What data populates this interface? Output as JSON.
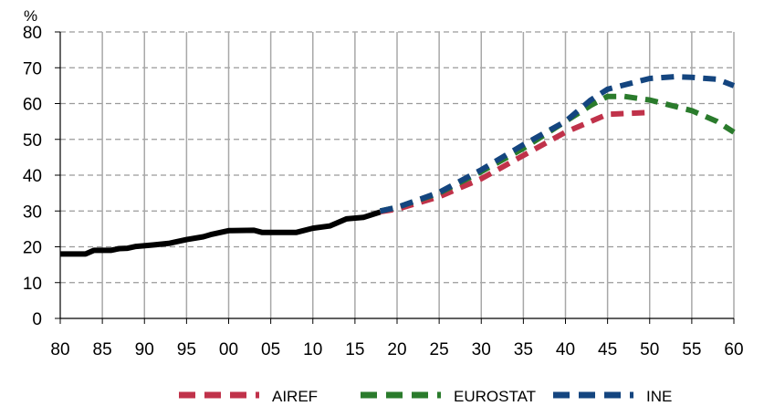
{
  "chart_data": {
    "type": "line",
    "unit_label": "%",
    "x_tick_labels": [
      "80",
      "85",
      "90",
      "95",
      "00",
      "05",
      "10",
      "15",
      "20",
      "25",
      "30",
      "35",
      "40",
      "45",
      "50",
      "55",
      "60"
    ],
    "xlim": [
      1980,
      2060
    ],
    "ylim": [
      0,
      80
    ],
    "y_ticks": [
      0,
      10,
      20,
      30,
      40,
      50,
      60,
      70,
      80
    ],
    "grid": true,
    "legend_position": "bottom",
    "series": [
      {
        "color": "#000000",
        "style": "solid",
        "points": [
          [
            1980,
            18
          ],
          [
            1983,
            18
          ],
          [
            1984,
            19
          ],
          [
            1986,
            19
          ],
          [
            1987,
            19.5
          ],
          [
            1988,
            19.6
          ],
          [
            1989,
            20.1
          ],
          [
            1991,
            20.5
          ],
          [
            1993,
            21
          ],
          [
            1995,
            22
          ],
          [
            1997,
            22.8
          ],
          [
            1998,
            23.5
          ],
          [
            1999,
            24
          ],
          [
            2000,
            24.5
          ],
          [
            2003,
            24.6
          ],
          [
            2004,
            24
          ],
          [
            2008,
            24
          ],
          [
            2010,
            25.2
          ],
          [
            2012,
            25.8
          ],
          [
            2014,
            27.8
          ],
          [
            2016,
            28.2
          ],
          [
            2018,
            29.7
          ]
        ]
      },
      {
        "name": "AIREF",
        "color": "#c0324a",
        "style": "dashed",
        "points": [
          [
            2018,
            29.8
          ],
          [
            2020,
            30.5
          ],
          [
            2025,
            34
          ],
          [
            2030,
            39
          ],
          [
            2035,
            45.5
          ],
          [
            2040,
            52
          ],
          [
            2043,
            55
          ],
          [
            2045,
            57
          ],
          [
            2050,
            57.5
          ]
        ]
      },
      {
        "name": "EUROSTAT",
        "color": "#2a7b2c",
        "style": "dashed",
        "points": [
          [
            2018,
            30
          ],
          [
            2020,
            31
          ],
          [
            2025,
            35
          ],
          [
            2030,
            41
          ],
          [
            2035,
            47.5
          ],
          [
            2040,
            55
          ],
          [
            2043,
            59.5
          ],
          [
            2045,
            62
          ],
          [
            2047,
            62
          ],
          [
            2050,
            61
          ],
          [
            2055,
            58
          ],
          [
            2058,
            55
          ],
          [
            2060,
            52
          ]
        ]
      },
      {
        "name": "INE",
        "color": "#14457f",
        "style": "dashed",
        "points": [
          [
            2018,
            30
          ],
          [
            2020,
            31
          ],
          [
            2025,
            35.2
          ],
          [
            2030,
            41.5
          ],
          [
            2035,
            48.5
          ],
          [
            2040,
            55
          ],
          [
            2043,
            61
          ],
          [
            2045,
            64
          ],
          [
            2050,
            67
          ],
          [
            2053,
            67.5
          ],
          [
            2055,
            67.3
          ],
          [
            2058,
            66.8
          ],
          [
            2060,
            65
          ]
        ]
      }
    ]
  }
}
